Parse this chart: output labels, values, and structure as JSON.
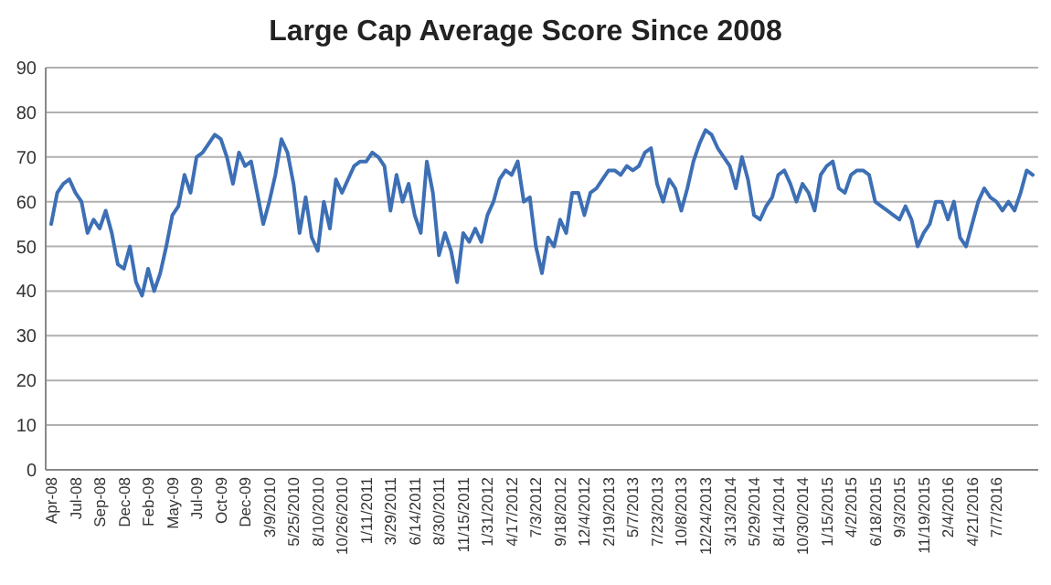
{
  "chart_data": {
    "type": "line",
    "title": "Large Cap Average Score Since 2008",
    "categories": [
      "Apr-08",
      null,
      null,
      null,
      "Jul-08",
      null,
      null,
      null,
      "Sep-08",
      null,
      null,
      null,
      "Dec-08",
      null,
      null,
      null,
      "Feb-09",
      null,
      null,
      null,
      "May-09",
      null,
      null,
      null,
      "Jul-09",
      null,
      null,
      null,
      "Oct-09",
      null,
      null,
      null,
      "Dec-09",
      null,
      null,
      null,
      "3/9/2010",
      null,
      null,
      null,
      "5/25/2010",
      null,
      null,
      null,
      "8/10/2010",
      null,
      null,
      null,
      "10/26/2010",
      null,
      null,
      null,
      "1/11/2011",
      null,
      null,
      null,
      "3/29/2011",
      null,
      null,
      null,
      "6/14/2011",
      null,
      null,
      null,
      "8/30/2011",
      null,
      null,
      null,
      "11/15/2011",
      null,
      null,
      null,
      "1/31/2012",
      null,
      null,
      null,
      "4/17/2012",
      null,
      null,
      null,
      "7/3/2012",
      null,
      null,
      null,
      "9/18/2012",
      null,
      null,
      null,
      "12/4/2012",
      null,
      null,
      null,
      "2/19/2013",
      null,
      null,
      null,
      "5/7/2013",
      null,
      null,
      null,
      "7/23/2013",
      null,
      null,
      null,
      "10/8/2013",
      null,
      null,
      null,
      "12/24/2013",
      null,
      null,
      null,
      "3/13/2014",
      null,
      null,
      null,
      "5/29/2014",
      null,
      null,
      null,
      "8/14/2014",
      null,
      null,
      null,
      "10/30/2014",
      null,
      null,
      null,
      "1/15/2015",
      null,
      null,
      null,
      "4/2/2015",
      null,
      null,
      null,
      "6/18/2015",
      null,
      null,
      null,
      "9/3/2015",
      null,
      null,
      null,
      "11/19/2015",
      null,
      null,
      null,
      "2/4/2016",
      null,
      null,
      null,
      "4/21/2016",
      null,
      null,
      null,
      "7/7/2016",
      null,
      null,
      null,
      null,
      null,
      null
    ],
    "series": [
      {
        "color": "#3d6fb5",
        "values": [
          55,
          62,
          64,
          65,
          62,
          60,
          53,
          56,
          54,
          58,
          53,
          46,
          45,
          50,
          42,
          39,
          45,
          40,
          44,
          50,
          57,
          59,
          66,
          62,
          70,
          71,
          73,
          75,
          74,
          70,
          64,
          71,
          68,
          69,
          62,
          55,
          60,
          66,
          74,
          71,
          64,
          53,
          61,
          52,
          49,
          60,
          54,
          65,
          62,
          65,
          68,
          69,
          69,
          71,
          70,
          68,
          58,
          66,
          60,
          64,
          57,
          53,
          69,
          62,
          48,
          53,
          49,
          42,
          53,
          51,
          54,
          51,
          57,
          60,
          65,
          67,
          66,
          69,
          60,
          61,
          50,
          44,
          52,
          50,
          56,
          53,
          62,
          62,
          57,
          62,
          63,
          65,
          67,
          67,
          66,
          68,
          67,
          68,
          71,
          72,
          64,
          60,
          65,
          63,
          58,
          63,
          69,
          73,
          76,
          75,
          72,
          70,
          68,
          63,
          70,
          65,
          57,
          56,
          59,
          61,
          66,
          67,
          64,
          60,
          64,
          62,
          58,
          66,
          68,
          69,
          63,
          62,
          66,
          67,
          67,
          66,
          60,
          59,
          58,
          57,
          56,
          59,
          56,
          50,
          53,
          55,
          60,
          60,
          56,
          60,
          52,
          50,
          55,
          60,
          63,
          61,
          60,
          58,
          60,
          58,
          62,
          67,
          66
        ]
      }
    ],
    "ylim": [
      0,
      90
    ],
    "yticks": [
      0,
      10,
      20,
      30,
      40,
      50,
      60,
      70,
      80,
      90
    ],
    "grid": "y"
  }
}
